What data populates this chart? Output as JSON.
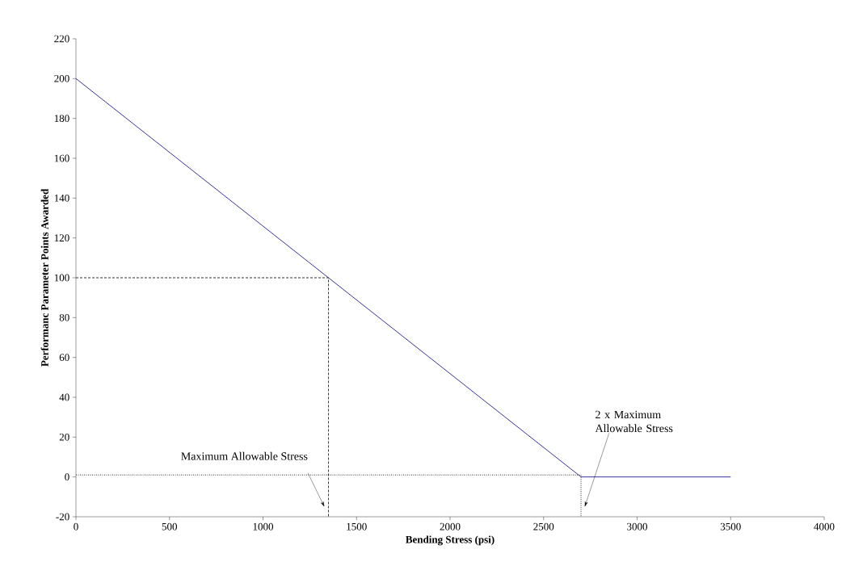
{
  "chart_data": {
    "type": "line",
    "xlabel": "Bending Stress (psi)",
    "ylabel": "Performanc Parameter Points Awarded",
    "xlim": [
      0,
      4000
    ],
    "xticks": [
      0,
      500,
      1000,
      1500,
      2000,
      2500,
      3000,
      3500,
      4000
    ],
    "ylim": [
      -20,
      220
    ],
    "yticks": [
      -20,
      0,
      20,
      40,
      60,
      80,
      100,
      120,
      140,
      160,
      180,
      200,
      220
    ],
    "grid": false,
    "marker": "none",
    "series": [
      {
        "color": "#000080",
        "line_style": "solid",
        "x": [
          0,
          2700,
          3500
        ],
        "values": [
          200,
          0,
          0
        ]
      },
      {
        "color": "#000000",
        "line_style": "dashed",
        "x": [
          0,
          1350,
          1350
        ],
        "values": [
          100,
          100,
          -20
        ]
      },
      {
        "color": "#000000",
        "line_style": "dotted",
        "x": [
          0,
          2700,
          2700
        ],
        "values": [
          1,
          1,
          -20
        ]
      }
    ],
    "annotations": [
      "Maximum Allowable Stress",
      "2 x Maximum Allowable Stress"
    ]
  }
}
